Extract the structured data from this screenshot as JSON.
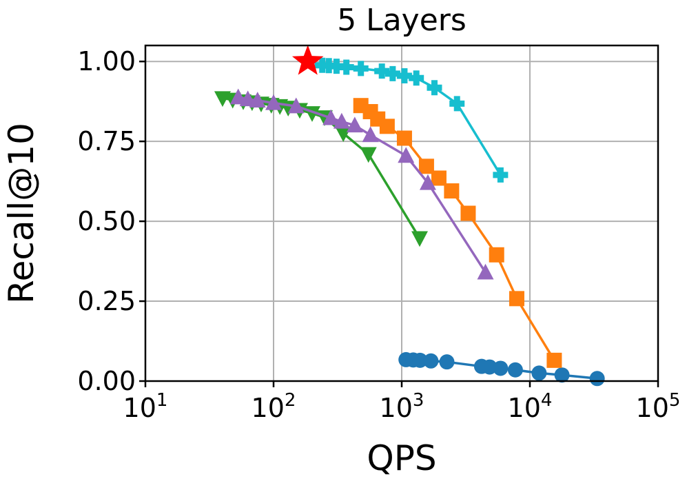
{
  "chart_data": {
    "type": "line",
    "title": "5 Layers",
    "xlabel": "QPS",
    "ylabel": "Recall@10",
    "xscale": "log",
    "xlim": [
      10,
      100000
    ],
    "ylim": [
      0,
      1.05
    ],
    "grid": true,
    "x_ticks": [
      {
        "base": "10",
        "exp": "1"
      },
      {
        "base": "10",
        "exp": "2"
      },
      {
        "base": "10",
        "exp": "3"
      },
      {
        "base": "10",
        "exp": "4"
      },
      {
        "base": "10",
        "exp": "5"
      }
    ],
    "y_ticks": [
      "0.00",
      "0.25",
      "0.50",
      "0.75",
      "1.00"
    ],
    "series": [
      {
        "color": "#1f77b4",
        "marker": "circle",
        "points": [
          [
            1080,
            0.067
          ],
          [
            1230,
            0.066
          ],
          [
            1390,
            0.065
          ],
          [
            1690,
            0.063
          ],
          [
            2250,
            0.06
          ],
          [
            4200,
            0.046
          ],
          [
            4850,
            0.044
          ],
          [
            5900,
            0.04
          ],
          [
            7700,
            0.035
          ],
          [
            11800,
            0.025
          ],
          [
            17800,
            0.019
          ],
          [
            33500,
            0.008
          ]
        ]
      },
      {
        "color": "#ff7f0e",
        "marker": "square",
        "points": [
          [
            480,
            0.862
          ],
          [
            570,
            0.843
          ],
          [
            650,
            0.82
          ],
          [
            770,
            0.797
          ],
          [
            1050,
            0.76
          ],
          [
            1560,
            0.672
          ],
          [
            1950,
            0.635
          ],
          [
            2450,
            0.595
          ],
          [
            3300,
            0.525
          ],
          [
            5500,
            0.395
          ],
          [
            7900,
            0.258
          ],
          [
            15500,
            0.065
          ]
        ]
      },
      {
        "color": "#2ca02c",
        "marker": "triangle-down",
        "points": [
          [
            40,
            0.885
          ],
          [
            48,
            0.88
          ],
          [
            58,
            0.875
          ],
          [
            68,
            0.872
          ],
          [
            80,
            0.868
          ],
          [
            96,
            0.864
          ],
          [
            112,
            0.86
          ],
          [
            130,
            0.855
          ],
          [
            160,
            0.848
          ],
          [
            200,
            0.838
          ],
          [
            250,
            0.825
          ],
          [
            350,
            0.775
          ],
          [
            550,
            0.71
          ],
          [
            1380,
            0.447
          ]
        ]
      },
      {
        "color": "#9467bd",
        "marker": "triangle-up",
        "points": [
          [
            53,
            0.888
          ],
          [
            63,
            0.882
          ],
          [
            75,
            0.878
          ],
          [
            100,
            0.87
          ],
          [
            150,
            0.86
          ],
          [
            280,
            0.823
          ],
          [
            340,
            0.812
          ],
          [
            430,
            0.8
          ],
          [
            570,
            0.77
          ],
          [
            1080,
            0.705
          ],
          [
            1600,
            0.62
          ],
          [
            4500,
            0.34
          ]
        ]
      },
      {
        "color": "#17becf",
        "marker": "plus",
        "points": [
          [
            240,
            0.988
          ],
          [
            270,
            0.987
          ],
          [
            310,
            0.985
          ],
          [
            370,
            0.982
          ],
          [
            480,
            0.978
          ],
          [
            700,
            0.97
          ],
          [
            850,
            0.962
          ],
          [
            1050,
            0.955
          ],
          [
            1300,
            0.948
          ],
          [
            1800,
            0.918
          ],
          [
            2700,
            0.868
          ],
          [
            5900,
            0.645
          ]
        ]
      }
    ],
    "annotations": [
      {
        "marker": "star",
        "color": "#ff0000",
        "x": 185,
        "y": 1.0
      }
    ]
  }
}
